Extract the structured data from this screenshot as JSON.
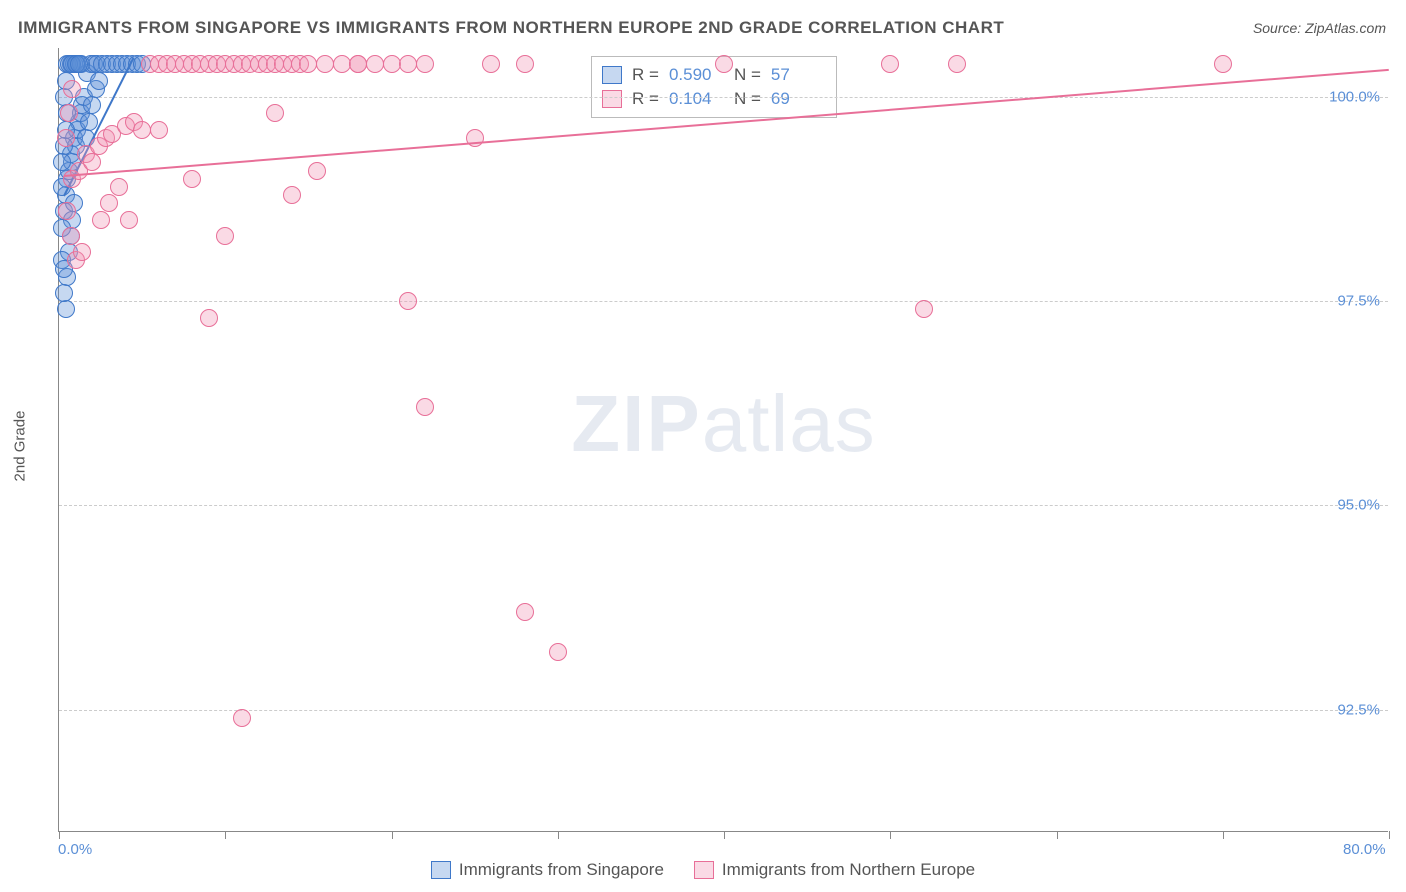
{
  "title": "IMMIGRANTS FROM SINGAPORE VS IMMIGRANTS FROM NORTHERN EUROPE 2ND GRADE CORRELATION CHART",
  "source_label": "Source: ",
  "source_name": "ZipAtlas.com",
  "y_axis_label": "2nd Grade",
  "watermark_bold": "ZIP",
  "watermark_rest": "atlas",
  "chart": {
    "type": "scatter",
    "xlim": [
      0,
      80
    ],
    "ylim": [
      91,
      100.6
    ],
    "x_ticks": [
      0,
      10,
      20,
      30,
      40,
      50,
      60,
      70,
      80
    ],
    "x_tick_labels_visible": {
      "0": "0.0%",
      "80": "80.0%"
    },
    "y_ticks": [
      92.5,
      95.0,
      97.5,
      100.0
    ],
    "y_tick_labels": [
      "92.5%",
      "95.0%",
      "97.5%",
      "100.0%"
    ],
    "grid_color": "#cccccc",
    "axis_color": "#888888",
    "background_color": "#ffffff",
    "tick_label_color": "#5b8fd6",
    "marker_radius": 9,
    "marker_stroke_width": 1.5,
    "marker_fill_opacity": 0.35
  },
  "series": [
    {
      "name": "Immigrants from Singapore",
      "color": "#5b8fd6",
      "fill": "rgba(91,143,214,0.35)",
      "stroke": "#3f78c9",
      "r_label": "R = ",
      "r_value": "0.590",
      "n_label": "N = ",
      "n_value": "57",
      "trend": {
        "x1": 0.3,
        "y1": 98.8,
        "x2": 4.5,
        "y2": 100.5
      },
      "points": [
        [
          0.3,
          98.6
        ],
        [
          0.4,
          98.8
        ],
        [
          0.5,
          99.0
        ],
        [
          0.6,
          99.1
        ],
        [
          0.7,
          99.3
        ],
        [
          0.8,
          99.2
        ],
        [
          0.9,
          99.5
        ],
        [
          1.0,
          99.4
        ],
        [
          1.1,
          99.6
        ],
        [
          1.2,
          99.7
        ],
        [
          1.3,
          99.8
        ],
        [
          1.4,
          99.9
        ],
        [
          1.5,
          100.0
        ],
        [
          1.7,
          100.3
        ],
        [
          1.9,
          100.4
        ],
        [
          2.1,
          100.4
        ],
        [
          2.3,
          100.4
        ],
        [
          2.6,
          100.4
        ],
        [
          2.9,
          100.4
        ],
        [
          3.2,
          100.4
        ],
        [
          3.5,
          100.4
        ],
        [
          3.8,
          100.4
        ],
        [
          4.1,
          100.4
        ],
        [
          4.4,
          100.4
        ],
        [
          4.7,
          100.4
        ],
        [
          5.0,
          100.4
        ],
        [
          0.4,
          97.4
        ],
        [
          0.5,
          97.8
        ],
        [
          0.6,
          98.1
        ],
        [
          0.7,
          98.3
        ],
        [
          0.8,
          98.5
        ],
        [
          0.9,
          98.7
        ],
        [
          0.3,
          99.4
        ],
        [
          0.4,
          99.6
        ],
        [
          0.5,
          99.8
        ],
        [
          0.3,
          100.0
        ],
        [
          0.4,
          100.2
        ],
        [
          0.5,
          100.4
        ],
        [
          0.7,
          100.4
        ],
        [
          0.9,
          100.4
        ],
        [
          1.1,
          100.4
        ],
        [
          1.3,
          100.4
        ],
        [
          0.2,
          98.0
        ],
        [
          0.2,
          98.4
        ],
        [
          0.2,
          98.9
        ],
        [
          0.2,
          99.2
        ],
        [
          0.3,
          97.6
        ],
        [
          0.3,
          97.9
        ],
        [
          1.6,
          99.5
        ],
        [
          1.8,
          99.7
        ],
        [
          2.0,
          99.9
        ],
        [
          2.2,
          100.1
        ],
        [
          2.4,
          100.2
        ],
        [
          0.6,
          100.4
        ],
        [
          0.8,
          100.4
        ],
        [
          1.0,
          100.4
        ],
        [
          1.2,
          100.4
        ]
      ]
    },
    {
      "name": "Immigrants from Northern Europe",
      "color": "#e97fa3",
      "fill": "rgba(240,150,180,0.35)",
      "stroke": "#e86f98",
      "r_label": "R = ",
      "r_value": "0.104",
      "n_label": "N = ",
      "n_value": "69",
      "trend": {
        "x1": 0.3,
        "y1": 99.05,
        "x2": 80,
        "y2": 100.35
      },
      "points": [
        [
          0.8,
          99.0
        ],
        [
          1.2,
          99.1
        ],
        [
          1.6,
          99.3
        ],
        [
          2.0,
          99.2
        ],
        [
          2.4,
          99.4
        ],
        [
          2.8,
          99.5
        ],
        [
          3.2,
          99.55
        ],
        [
          3.6,
          98.9
        ],
        [
          4.0,
          99.65
        ],
        [
          4.5,
          99.7
        ],
        [
          5.0,
          99.6
        ],
        [
          5.5,
          100.4
        ],
        [
          6.0,
          100.4
        ],
        [
          6.5,
          100.4
        ],
        [
          7.0,
          100.4
        ],
        [
          7.5,
          100.4
        ],
        [
          8.0,
          100.4
        ],
        [
          8.5,
          100.4
        ],
        [
          9.0,
          100.4
        ],
        [
          9.5,
          100.4
        ],
        [
          10.0,
          100.4
        ],
        [
          10.5,
          100.4
        ],
        [
          11.0,
          100.4
        ],
        [
          11.5,
          100.4
        ],
        [
          12.0,
          100.4
        ],
        [
          12.5,
          100.4
        ],
        [
          13.0,
          100.4
        ],
        [
          13.5,
          100.4
        ],
        [
          14.0,
          100.4
        ],
        [
          14.5,
          100.4
        ],
        [
          15.0,
          100.4
        ],
        [
          16.0,
          100.4
        ],
        [
          17.0,
          100.4
        ],
        [
          18.0,
          100.4
        ],
        [
          19.0,
          100.4
        ],
        [
          20.0,
          100.4
        ],
        [
          21.0,
          100.4
        ],
        [
          22.0,
          100.4
        ],
        [
          26.0,
          100.4
        ],
        [
          28.0,
          100.4
        ],
        [
          50.0,
          100.4
        ],
        [
          54.0,
          100.4
        ],
        [
          70.0,
          100.4
        ],
        [
          0.5,
          98.6
        ],
        [
          0.7,
          98.3
        ],
        [
          1.0,
          98.0
        ],
        [
          1.4,
          98.1
        ],
        [
          2.5,
          98.5
        ],
        [
          6.0,
          99.6
        ],
        [
          8.0,
          99.0
        ],
        [
          9.0,
          97.3
        ],
        [
          10.0,
          98.3
        ],
        [
          11.0,
          92.4
        ],
        [
          14.0,
          98.8
        ],
        [
          15.5,
          99.1
        ],
        [
          18.0,
          100.4
        ],
        [
          21.0,
          97.5
        ],
        [
          22.0,
          96.2
        ],
        [
          25.0,
          99.5
        ],
        [
          28.0,
          93.7
        ],
        [
          30.0,
          93.2
        ],
        [
          40.0,
          100.4
        ],
        [
          52.0,
          97.4
        ],
        [
          13.0,
          99.8
        ],
        [
          3.0,
          98.7
        ],
        [
          4.2,
          98.5
        ],
        [
          0.4,
          99.5
        ],
        [
          0.6,
          99.8
        ],
        [
          0.8,
          100.1
        ]
      ]
    }
  ]
}
